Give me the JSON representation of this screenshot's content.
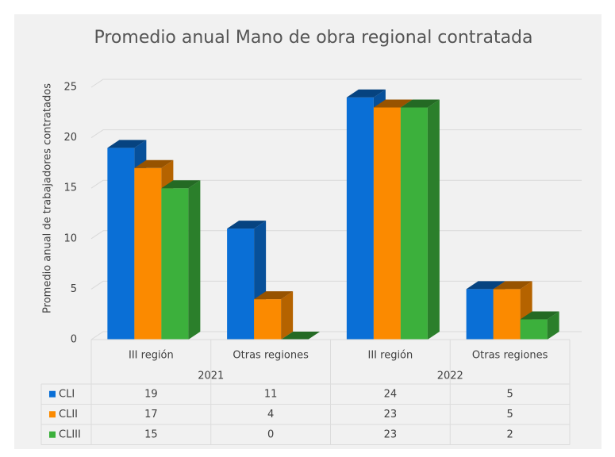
{
  "chart_data": {
    "type": "bar",
    "title": "Promedio anual Mano de obra regional contratada",
    "y_label": "Promedio anual de trabajadores contratados",
    "categories": [
      "III región",
      "Otras regiones",
      "III región",
      "Otras regiones"
    ],
    "category_groups": [
      "2021",
      "2022"
    ],
    "series": [
      {
        "name": "CLI",
        "color": "#0a6fd6",
        "values": [
          19,
          11,
          24,
          5
        ]
      },
      {
        "name": "CLII",
        "color": "#fb8a00",
        "values": [
          17,
          4,
          23,
          5
        ]
      },
      {
        "name": "CLIII",
        "color": "#3cb03c",
        "values": [
          15,
          0,
          23,
          2
        ]
      }
    ],
    "ylim": [
      0,
      25
    ],
    "yticks": [
      0,
      5,
      10,
      15,
      20,
      25
    ],
    "grid": true,
    "data_table": true
  }
}
